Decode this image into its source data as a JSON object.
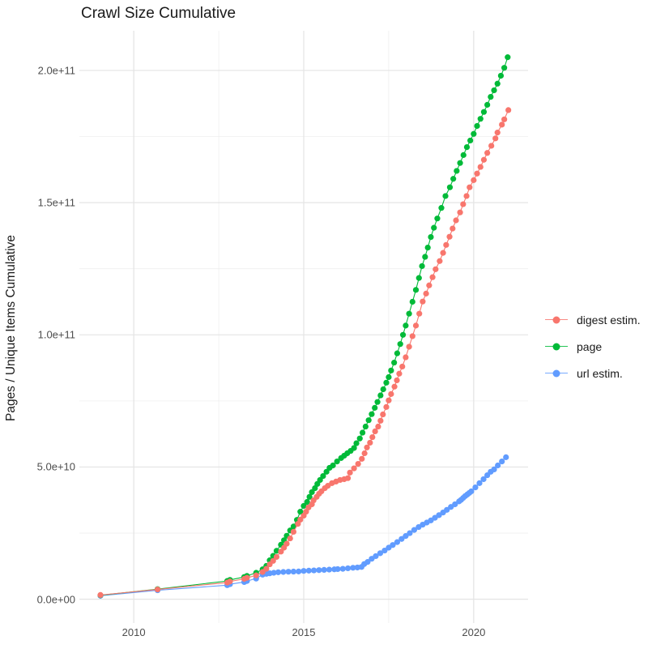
{
  "title": "Crawl Size Cumulative",
  "chart_data": {
    "type": "scatter",
    "title": "Crawl Size Cumulative",
    "xlabel": "",
    "ylabel": "Pages / Unique Items Cumulative",
    "grid": true,
    "legend_position": "right",
    "value_unit": "1e9 (billions of pages / unique items)",
    "xlim": [
      2008.4,
      2021.6
    ],
    "ylim": [
      -9,
      215
    ],
    "x_ticks": [
      2010,
      2015,
      2020
    ],
    "x_tick_labels": [
      "2010",
      "2015",
      "2020"
    ],
    "x_minor_ticks": [
      2012.5,
      2017.5
    ],
    "y_ticks": [
      0,
      50,
      100,
      150,
      200
    ],
    "y_tick_labels": [
      "0.0e+00",
      "5.0e+10",
      "1.0e+11",
      "1.5e+11",
      "2.0e+11"
    ],
    "y_minor_ticks": [
      25,
      75,
      125,
      175
    ],
    "series": [
      {
        "name": "digest estim.",
        "color": "#F8766D",
        "points": [
          [
            2009.02,
            1.6
          ],
          [
            2010.7,
            3.7
          ],
          [
            2012.75,
            6.3
          ],
          [
            2012.83,
            6.7
          ],
          [
            2013.25,
            7.7
          ],
          [
            2013.33,
            8.1
          ],
          [
            2013.6,
            9.0
          ],
          [
            2013.79,
            10.3
          ],
          [
            2013.9,
            11.5
          ],
          [
            2014.0,
            13.2
          ],
          [
            2014.1,
            14.5
          ],
          [
            2014.2,
            16.0
          ],
          [
            2014.33,
            18.0
          ],
          [
            2014.42,
            19.5
          ],
          [
            2014.5,
            21.0
          ],
          [
            2014.6,
            23.0
          ],
          [
            2014.7,
            25.5
          ],
          [
            2014.83,
            28.5
          ],
          [
            2014.9,
            30.1
          ],
          [
            2015.0,
            31.6
          ],
          [
            2015.07,
            33.1
          ],
          [
            2015.14,
            34.7
          ],
          [
            2015.24,
            35.9
          ],
          [
            2015.29,
            37.4
          ],
          [
            2015.38,
            38.7
          ],
          [
            2015.45,
            39.9
          ],
          [
            2015.52,
            40.8
          ],
          [
            2015.62,
            42.0
          ],
          [
            2015.71,
            42.9
          ],
          [
            2015.83,
            43.9
          ],
          [
            2015.95,
            44.5
          ],
          [
            2016.07,
            45.1
          ],
          [
            2016.19,
            45.4
          ],
          [
            2016.3,
            45.8
          ],
          [
            2016.36,
            47.9
          ],
          [
            2016.48,
            49.5
          ],
          [
            2016.6,
            51.2
          ],
          [
            2016.71,
            53.1
          ],
          [
            2016.79,
            55.2
          ],
          [
            2016.86,
            57.4
          ],
          [
            2016.95,
            59.2
          ],
          [
            2017.02,
            61.3
          ],
          [
            2017.1,
            63.5
          ],
          [
            2017.19,
            65.3
          ],
          [
            2017.26,
            67.5
          ],
          [
            2017.33,
            69.9
          ],
          [
            2017.43,
            72.7
          ],
          [
            2017.5,
            75.2
          ],
          [
            2017.57,
            77.6
          ],
          [
            2017.67,
            80.4
          ],
          [
            2017.74,
            82.8
          ],
          [
            2017.81,
            85.3
          ],
          [
            2017.9,
            88.0
          ],
          [
            2018.0,
            91.5
          ],
          [
            2018.1,
            95.5
          ],
          [
            2018.2,
            99.5
          ],
          [
            2018.3,
            103.5
          ],
          [
            2018.4,
            108.0
          ],
          [
            2018.5,
            112.6
          ],
          [
            2018.6,
            115.6
          ],
          [
            2018.69,
            118.7
          ],
          [
            2018.79,
            121.8
          ],
          [
            2018.88,
            124.8
          ],
          [
            2019.0,
            127.9
          ],
          [
            2019.1,
            131.0
          ],
          [
            2019.19,
            134.0
          ],
          [
            2019.29,
            137.1
          ],
          [
            2019.38,
            140.2
          ],
          [
            2019.48,
            143.3
          ],
          [
            2019.6,
            146.3
          ],
          [
            2019.69,
            149.4
          ],
          [
            2019.79,
            152.5
          ],
          [
            2019.88,
            155.8
          ],
          [
            2020.0,
            158.5
          ],
          [
            2020.1,
            161.0
          ],
          [
            2020.2,
            163.5
          ],
          [
            2020.3,
            166.2
          ],
          [
            2020.4,
            168.8
          ],
          [
            2020.52,
            171.5
          ],
          [
            2020.64,
            174.3
          ],
          [
            2020.7,
            176.5
          ],
          [
            2020.83,
            179.5
          ],
          [
            2020.9,
            181.5
          ],
          [
            2021.02,
            185.0
          ]
        ]
      },
      {
        "name": "page",
        "color": "#00BA38",
        "points": [
          [
            2009.02,
            1.5
          ],
          [
            2010.7,
            3.8
          ],
          [
            2012.75,
            6.9
          ],
          [
            2012.83,
            7.3
          ],
          [
            2013.25,
            8.4
          ],
          [
            2013.33,
            8.8
          ],
          [
            2013.6,
            10.0
          ],
          [
            2013.79,
            11.3
          ],
          [
            2013.9,
            12.6
          ],
          [
            2014.0,
            14.7
          ],
          [
            2014.1,
            16.4
          ],
          [
            2014.2,
            18.3
          ],
          [
            2014.33,
            20.6
          ],
          [
            2014.42,
            22.3
          ],
          [
            2014.5,
            24.0
          ],
          [
            2014.6,
            26.0
          ],
          [
            2014.7,
            27.5
          ],
          [
            2014.8,
            30.0
          ],
          [
            2014.9,
            33.1
          ],
          [
            2015.0,
            35.3
          ],
          [
            2015.1,
            36.8
          ],
          [
            2015.17,
            38.7
          ],
          [
            2015.24,
            40.5
          ],
          [
            2015.33,
            42.0
          ],
          [
            2015.4,
            43.6
          ],
          [
            2015.48,
            45.1
          ],
          [
            2015.57,
            46.6
          ],
          [
            2015.67,
            48.2
          ],
          [
            2015.76,
            49.7
          ],
          [
            2015.86,
            50.6
          ],
          [
            2015.98,
            52.1
          ],
          [
            2016.1,
            53.4
          ],
          [
            2016.19,
            54.3
          ],
          [
            2016.28,
            55.2
          ],
          [
            2016.38,
            56.1
          ],
          [
            2016.48,
            57.2
          ],
          [
            2016.55,
            59.0
          ],
          [
            2016.65,
            60.8
          ],
          [
            2016.73,
            63.0
          ],
          [
            2016.82,
            65.3
          ],
          [
            2016.91,
            67.7
          ],
          [
            2017.0,
            70.0
          ],
          [
            2017.09,
            72.4
          ],
          [
            2017.17,
            74.6
          ],
          [
            2017.26,
            77.1
          ],
          [
            2017.34,
            79.4
          ],
          [
            2017.43,
            81.9
          ],
          [
            2017.5,
            84.0
          ],
          [
            2017.57,
            86.5
          ],
          [
            2017.66,
            89.5
          ],
          [
            2017.75,
            93.0
          ],
          [
            2017.84,
            96.5
          ],
          [
            2017.92,
            100.0
          ],
          [
            2018.0,
            103.5
          ],
          [
            2018.1,
            108.0
          ],
          [
            2018.2,
            112.5
          ],
          [
            2018.3,
            117.0
          ],
          [
            2018.39,
            121.5
          ],
          [
            2018.48,
            126.0
          ],
          [
            2018.57,
            129.5
          ],
          [
            2018.65,
            133.0
          ],
          [
            2018.74,
            137.0
          ],
          [
            2018.83,
            140.5
          ],
          [
            2018.93,
            144.0
          ],
          [
            2019.05,
            148.0
          ],
          [
            2019.17,
            152.5
          ],
          [
            2019.3,
            155.8
          ],
          [
            2019.4,
            159.0
          ],
          [
            2019.5,
            162.0
          ],
          [
            2019.6,
            165.0
          ],
          [
            2019.7,
            168.0
          ],
          [
            2019.8,
            171.0
          ],
          [
            2019.9,
            173.5
          ],
          [
            2020.0,
            176.0
          ],
          [
            2020.1,
            179.0
          ],
          [
            2020.2,
            181.7
          ],
          [
            2020.3,
            184.3
          ],
          [
            2020.4,
            187.0
          ],
          [
            2020.5,
            190.0
          ],
          [
            2020.6,
            192.5
          ],
          [
            2020.7,
            195.0
          ],
          [
            2020.8,
            198.0
          ],
          [
            2020.9,
            201.0
          ],
          [
            2021.0,
            205.0
          ]
        ]
      },
      {
        "name": "url estim.",
        "color": "#619CFF",
        "points": [
          [
            2009.02,
            1.3
          ],
          [
            2010.7,
            3.4
          ],
          [
            2012.75,
            5.3
          ],
          [
            2012.83,
            5.7
          ],
          [
            2013.25,
            6.5
          ],
          [
            2013.33,
            6.9
          ],
          [
            2013.6,
            7.8
          ],
          [
            2013.79,
            9.3
          ],
          [
            2013.9,
            9.6
          ],
          [
            2014.0,
            9.8
          ],
          [
            2014.12,
            10.0
          ],
          [
            2014.25,
            10.2
          ],
          [
            2014.4,
            10.3
          ],
          [
            2014.55,
            10.4
          ],
          [
            2014.7,
            10.45
          ],
          [
            2014.85,
            10.5
          ],
          [
            2015.0,
            10.7
          ],
          [
            2015.15,
            10.8
          ],
          [
            2015.3,
            10.9
          ],
          [
            2015.45,
            11.0
          ],
          [
            2015.6,
            11.1
          ],
          [
            2015.75,
            11.2
          ],
          [
            2015.9,
            11.3
          ],
          [
            2016.0,
            11.4
          ],
          [
            2016.15,
            11.5
          ],
          [
            2016.3,
            11.7
          ],
          [
            2016.45,
            11.9
          ],
          [
            2016.58,
            12.0
          ],
          [
            2016.7,
            12.2
          ],
          [
            2016.78,
            13.3
          ],
          [
            2016.88,
            14.1
          ],
          [
            2017.0,
            15.3
          ],
          [
            2017.12,
            16.3
          ],
          [
            2017.25,
            17.4
          ],
          [
            2017.38,
            18.4
          ],
          [
            2017.5,
            19.5
          ],
          [
            2017.62,
            20.5
          ],
          [
            2017.75,
            21.6
          ],
          [
            2017.88,
            22.8
          ],
          [
            2018.0,
            23.9
          ],
          [
            2018.12,
            25.0
          ],
          [
            2018.25,
            26.2
          ],
          [
            2018.38,
            27.3
          ],
          [
            2018.5,
            28.2
          ],
          [
            2018.62,
            29.0
          ],
          [
            2018.74,
            29.8
          ],
          [
            2018.86,
            30.8
          ],
          [
            2018.98,
            31.8
          ],
          [
            2019.1,
            32.8
          ],
          [
            2019.21,
            33.8
          ],
          [
            2019.33,
            34.9
          ],
          [
            2019.45,
            35.9
          ],
          [
            2019.57,
            37.0
          ],
          [
            2019.63,
            37.6
          ],
          [
            2019.69,
            38.3
          ],
          [
            2019.75,
            39.0
          ],
          [
            2019.81,
            39.6
          ],
          [
            2019.87,
            40.2
          ],
          [
            2019.93,
            40.8
          ],
          [
            2020.05,
            42.3
          ],
          [
            2020.17,
            43.9
          ],
          [
            2020.29,
            45.4
          ],
          [
            2020.4,
            46.9
          ],
          [
            2020.5,
            48.2
          ],
          [
            2020.6,
            49.1
          ],
          [
            2020.71,
            50.6
          ],
          [
            2020.83,
            52.1
          ],
          [
            2020.95,
            53.7
          ]
        ]
      }
    ],
    "style": {
      "grid_major_color": "#e4e4e4",
      "grid_minor_color": "#efefef",
      "background": "#ffffff",
      "point_radius": 3.6
    }
  },
  "legend": {
    "items": [
      "digest estim.",
      "page",
      "url estim."
    ]
  }
}
